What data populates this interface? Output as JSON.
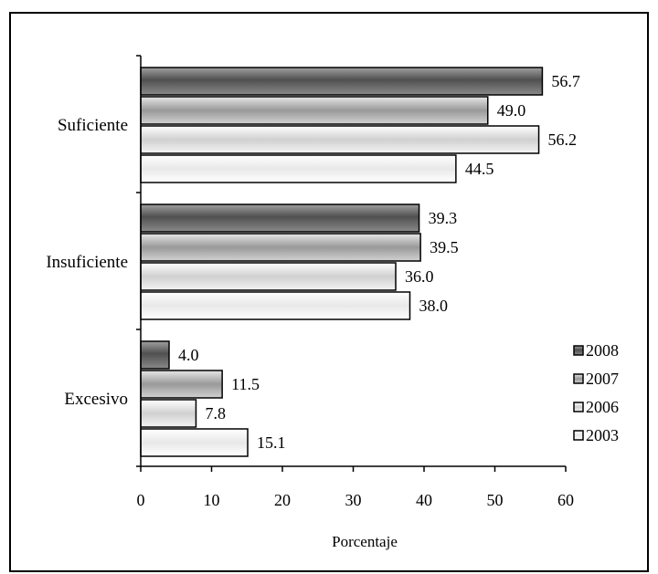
{
  "chart_data": {
    "type": "bar",
    "orientation": "horizontal",
    "categories": [
      "Suficiente",
      "Insuficiente",
      "Excesivo"
    ],
    "series": [
      {
        "name": "2008",
        "values": [
          56.7,
          39.3,
          4.0
        ],
        "color": "#6b6b6b"
      },
      {
        "name": "2007",
        "values": [
          49.0,
          39.5,
          11.5
        ],
        "color": "#a9a9a9"
      },
      {
        "name": "2006",
        "values": [
          56.2,
          36.0,
          7.8
        ],
        "color": "#dcdcdc"
      },
      {
        "name": "2003",
        "values": [
          44.5,
          38.0,
          15.1
        ],
        "color": "#f2f2f2"
      }
    ],
    "value_labels": [
      [
        "56.7",
        "39.3",
        "4.0"
      ],
      [
        "49.0",
        "39.5",
        "11.5"
      ],
      [
        "56.2",
        "36.0",
        "7.8"
      ],
      [
        "44.5",
        "38.0",
        "15.1"
      ]
    ],
    "xlabel": "Porcentaje",
    "ylabel": "",
    "xlim": [
      0,
      60
    ],
    "xticks": [
      "0",
      "10",
      "20",
      "30",
      "40",
      "50",
      "60"
    ],
    "grid": false,
    "legend_position": "bottom-right"
  }
}
